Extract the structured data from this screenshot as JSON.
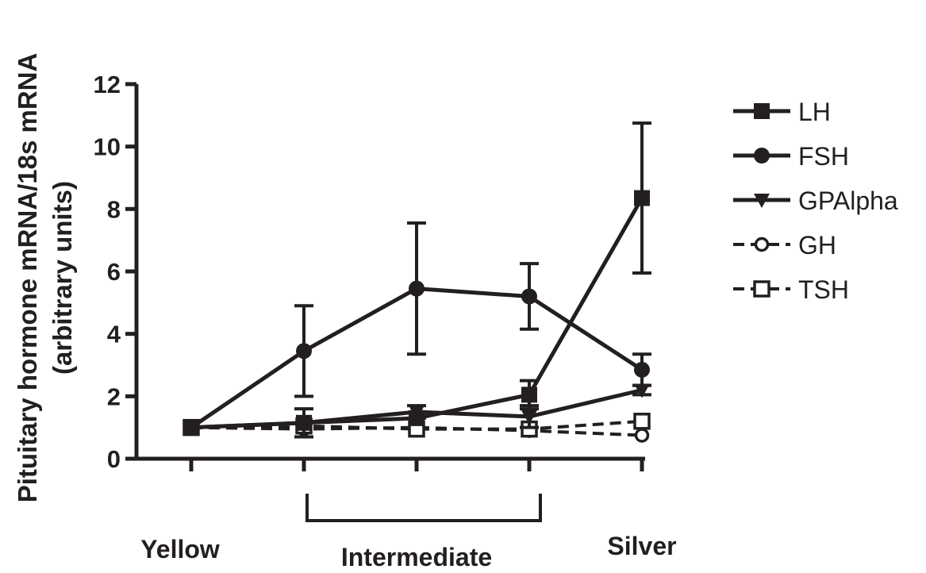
{
  "chart_data": {
    "type": "line",
    "ylabel_line1": "Pituitary hormone mRNA/18s mRNA",
    "ylabel_line2": "(arbitrary units)",
    "x": [
      0,
      1,
      2,
      3,
      4
    ],
    "ylim": [
      0,
      12
    ],
    "yticks": [
      0,
      2,
      4,
      6,
      8,
      10,
      12
    ],
    "grid": false,
    "legend_position": "right",
    "category_labels": [
      {
        "label": "Yellow",
        "at": 0
      },
      {
        "label": "Intermediate",
        "at": 2
      },
      {
        "label": "Silver",
        "at": 4
      }
    ],
    "intermediate_bracket": [
      1,
      3
    ],
    "series": [
      {
        "name": "LH",
        "marker": "square",
        "dash": "solid",
        "values": [
          1.0,
          1.15,
          1.3,
          2.05,
          8.35
        ],
        "errors": [
          0.0,
          0.0,
          0.0,
          0.45,
          2.4
        ]
      },
      {
        "name": "FSH",
        "marker": "circle",
        "dash": "solid",
        "values": [
          1.0,
          3.45,
          5.45,
          5.2,
          2.85
        ],
        "errors": [
          0.0,
          1.45,
          2.1,
          1.05,
          0.5
        ]
      },
      {
        "name": "GPAlpha",
        "marker": "triangle-down",
        "dash": "solid",
        "values": [
          1.0,
          1.15,
          1.5,
          1.35,
          2.2
        ],
        "errors": [
          0.0,
          0.45,
          0.2,
          0.35,
          0.15
        ]
      },
      {
        "name": "GH",
        "marker": "circle-open",
        "dash": "dashed",
        "values": [
          1.0,
          0.95,
          1.0,
          0.9,
          0.75
        ],
        "errors": [
          0.0,
          0.0,
          0.0,
          0.0,
          0.0
        ]
      },
      {
        "name": "TSH",
        "marker": "square-open",
        "dash": "dashed",
        "values": [
          1.0,
          1.05,
          0.95,
          0.95,
          1.2
        ],
        "errors": [
          0.0,
          0.0,
          0.0,
          0.0,
          0.0
        ]
      }
    ]
  }
}
